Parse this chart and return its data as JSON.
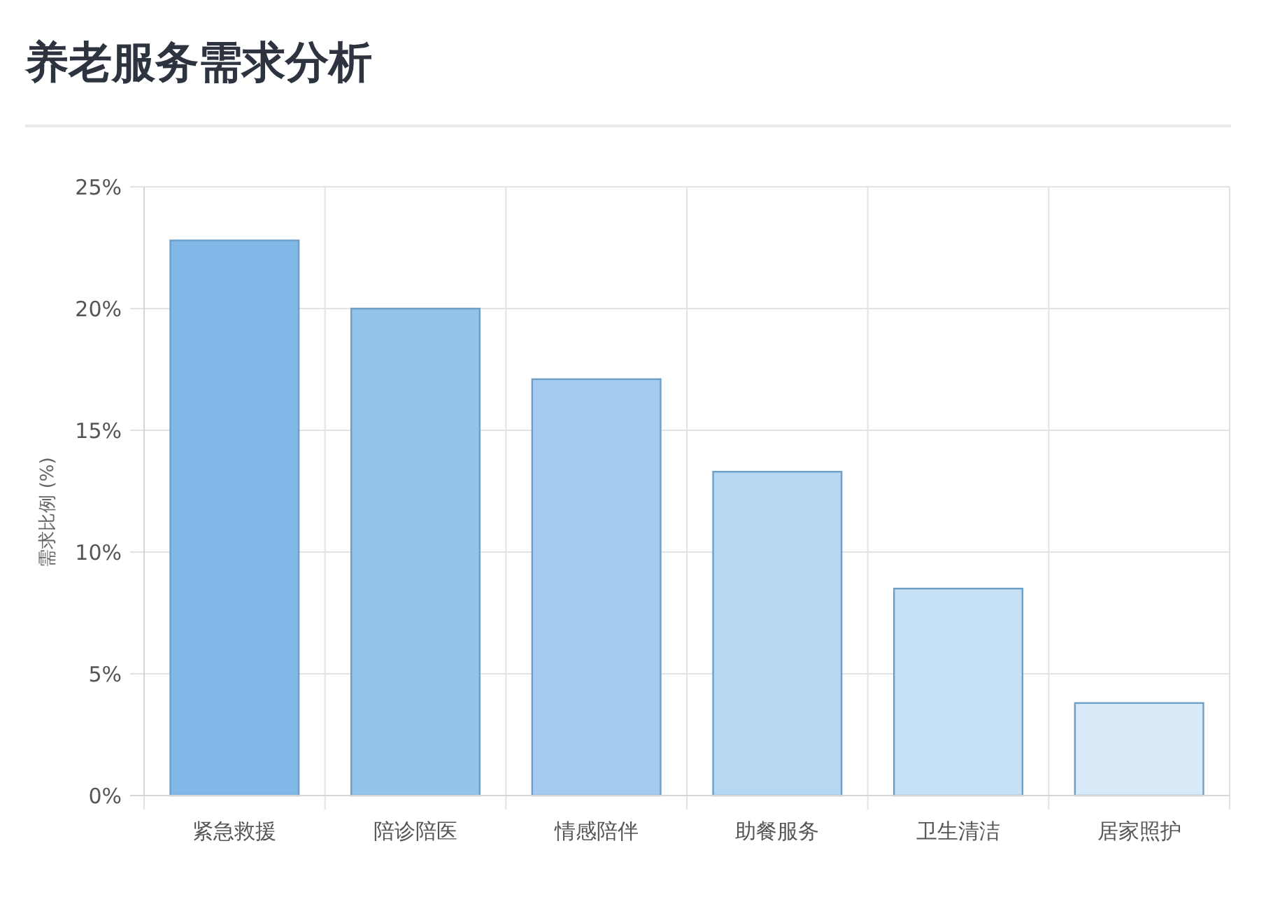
{
  "chart_data": {
    "type": "bar",
    "title": "养老服务需求分析",
    "ylabel": "需求比例 (%)",
    "categories": [
      "紧急救援",
      "陪诊陪医",
      "情感陪伴",
      "助餐服务",
      "卫生清洁",
      "居家照护"
    ],
    "values": [
      22.8,
      20.0,
      17.1,
      13.3,
      8.5,
      3.8
    ],
    "colors": [
      "#80b8e8",
      "#94c4ec",
      "#a3cbef",
      "#b5d7f2",
      "#c6e0f5",
      "#d8eaf8"
    ],
    "ylim": [
      0,
      25
    ],
    "yticks": [
      {
        "value": 0,
        "label": "0%"
      },
      {
        "value": 5,
        "label": "5%"
      },
      {
        "value": 10,
        "label": "10%"
      },
      {
        "value": 15,
        "label": "15%"
      },
      {
        "value": 20,
        "label": "20%"
      },
      {
        "value": 25,
        "label": "25%"
      }
    ],
    "grid": true
  }
}
